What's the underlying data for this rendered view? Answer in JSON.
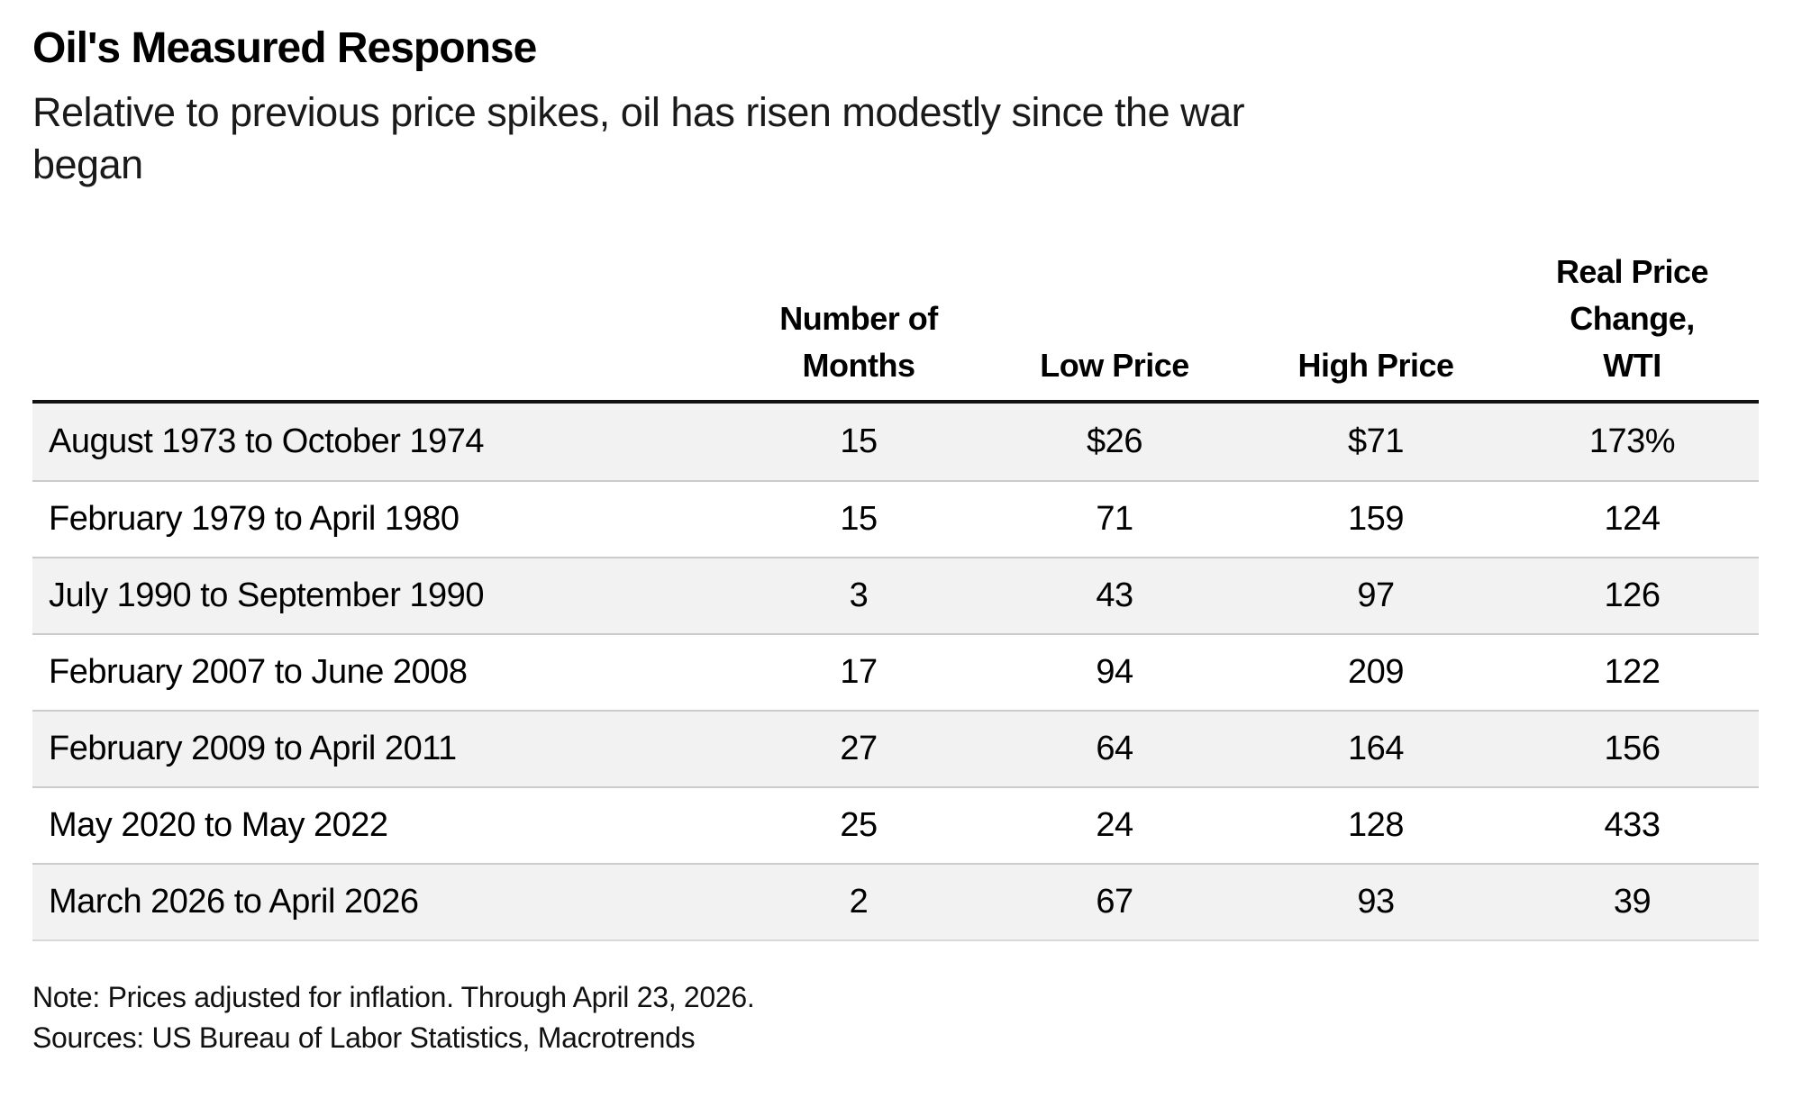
{
  "page": {
    "title": "Oil's Measured Response",
    "subtitle_line1": "Relative to previous price spikes, oil has risen modestly since the war",
    "subtitle_line2": "began",
    "note": "Note: Prices adjusted for inflation. Through April 23, 2026.",
    "sources": "Sources: US Bureau of Labor Statistics, Macrotrends"
  },
  "colors": {
    "row_stripe": "#f2f2f2",
    "table_top_rule": "#111111",
    "row_separator": "#cbcbcb",
    "text": "#000000"
  },
  "table": {
    "columns": [
      {
        "label": ""
      },
      {
        "label": "Number of\nMonths"
      },
      {
        "label": "Low Price"
      },
      {
        "label": "High Price"
      },
      {
        "label": "Real Price\nChange,\nWTI"
      }
    ],
    "rows": [
      {
        "period": "August 1973 to October 1974",
        "months": "15",
        "low": "$26",
        "high": "$71",
        "change": "173%"
      },
      {
        "period": "February 1979 to April 1980",
        "months": "15",
        "low": "71",
        "high": "159",
        "change": "124"
      },
      {
        "period": "July 1990 to September 1990",
        "months": "3",
        "low": "43",
        "high": "97",
        "change": "126"
      },
      {
        "period": "February 2007 to June 2008",
        "months": "17",
        "low": "94",
        "high": "209",
        "change": "122"
      },
      {
        "period": "February 2009 to April 2011",
        "months": "27",
        "low": "64",
        "high": "164",
        "change": "156"
      },
      {
        "period": "May 2020 to May 2022",
        "months": "25",
        "low": "24",
        "high": "128",
        "change": "433"
      },
      {
        "period": "March 2026 to April 2026",
        "months": "2",
        "low": "67",
        "high": "93",
        "change": "39"
      }
    ]
  },
  "chart_data": {
    "type": "table",
    "title": "Oil's Measured Response",
    "subtitle": "Relative to previous price spikes, oil has risen modestly since the war began",
    "columns": [
      "Period",
      "Number of Months",
      "Low Price",
      "High Price",
      "Real Price Change, WTI"
    ],
    "rows": [
      [
        "August 1973 to October 1974",
        15,
        26,
        71,
        "173%"
      ],
      [
        "February 1979 to April 1980",
        15,
        71,
        159,
        124
      ],
      [
        "July 1990 to September 1990",
        3,
        43,
        97,
        126
      ],
      [
        "February 2007 to June 2008",
        17,
        94,
        209,
        122
      ],
      [
        "February 2009 to April 2011",
        27,
        64,
        164,
        156
      ],
      [
        "May 2020 to May 2022",
        25,
        24,
        128,
        433
      ],
      [
        "March 2026 to April 2026",
        2,
        67,
        93,
        39
      ]
    ],
    "notes": "Note: Prices adjusted for inflation. Through April 23, 2026.",
    "sources": "Sources: US Bureau of Labor Statistics, Macrotrends"
  }
}
